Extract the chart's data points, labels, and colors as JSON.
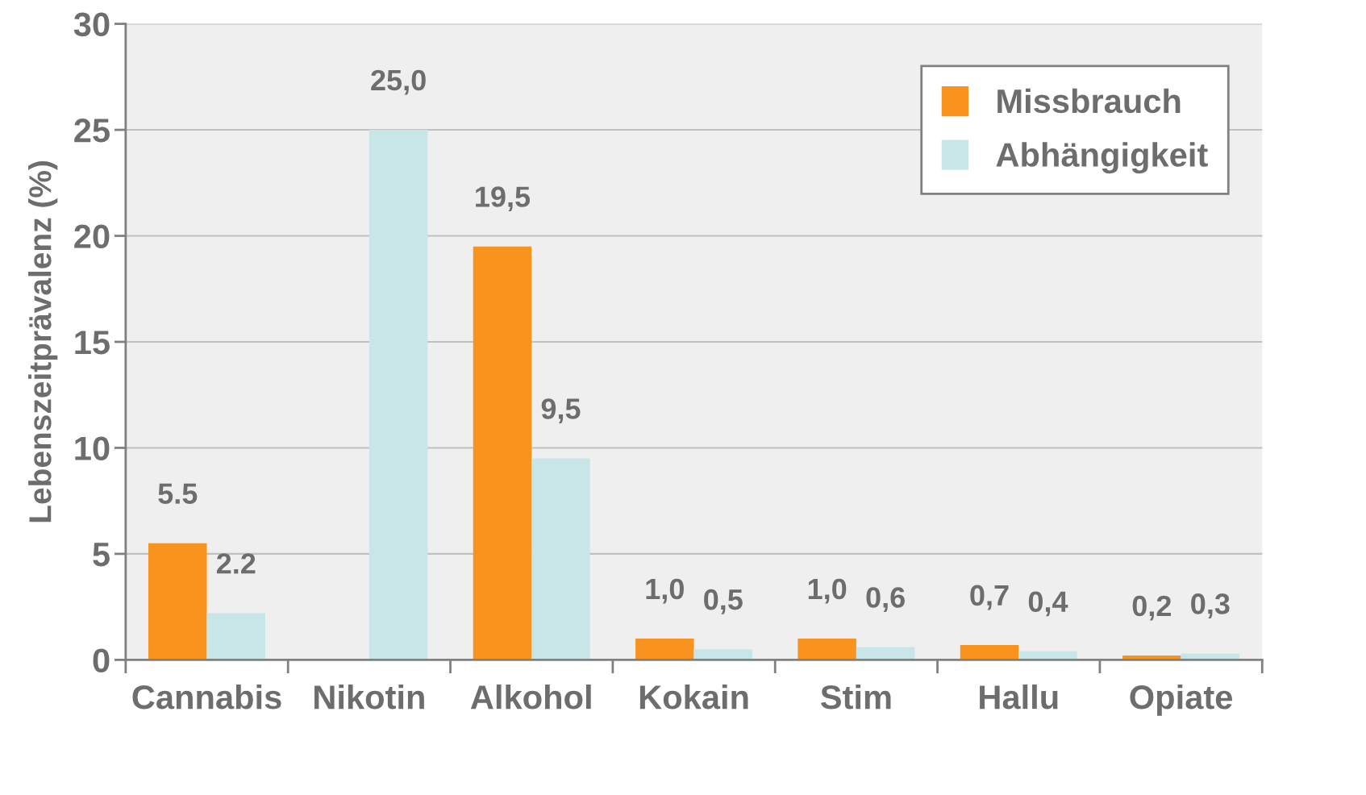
{
  "chart_data": {
    "type": "bar",
    "ylabel": "Lebenszeitprävalenz (%)",
    "categories": [
      "Cannabis",
      "Nikotin",
      "Alkohol",
      "Kokain",
      "Stim",
      "Hallu",
      "Opiate"
    ],
    "series": [
      {
        "name": "Missbrauch",
        "color": "#f7931e",
        "values": [
          5.5,
          null,
          19.5,
          1.0,
          1.0,
          0.7,
          0.2
        ],
        "value_labels": [
          "5.5",
          null,
          "19,5",
          "1,0",
          "1,0",
          "0,7",
          "0,2"
        ]
      },
      {
        "name": "Abhängigkeit",
        "color": "#c8e6e8",
        "values": [
          2.2,
          25.0,
          9.5,
          0.5,
          0.6,
          0.4,
          0.3
        ],
        "value_labels": [
          "2.2",
          "25,0",
          "9,5",
          "0,5",
          "0,6",
          "0,4",
          "0,3"
        ]
      }
    ],
    "ylim": [
      0,
      30
    ],
    "yticks": [
      0,
      5,
      10,
      15,
      20,
      25,
      30
    ],
    "grid": "y",
    "legend": "top right"
  }
}
